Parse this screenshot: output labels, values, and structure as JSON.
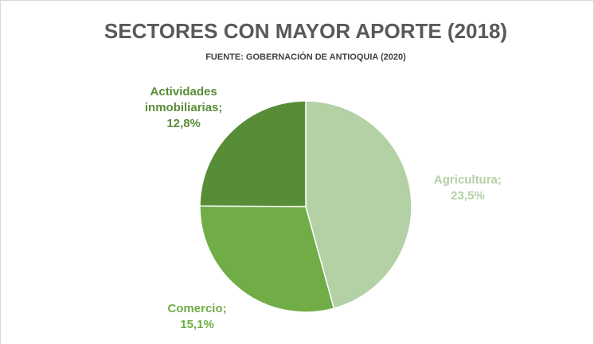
{
  "chart_data": {
    "type": "pie",
    "title": "SECTORES CON MAYOR APORTE (2018)",
    "subtitle": "FUENTE: GOBERNACIÓN DE ANTIOQUIA (2020)",
    "categories": [
      "Agricultura;",
      "Comercio;",
      "Actividades inmobiliarias;"
    ],
    "values": [
      23.5,
      15.1,
      12.8
    ],
    "value_labels": [
      "23,5%",
      "15,1%",
      "12,8%"
    ],
    "colors": [
      "#b4d0a5",
      "#70ad47",
      "#588d37"
    ]
  }
}
